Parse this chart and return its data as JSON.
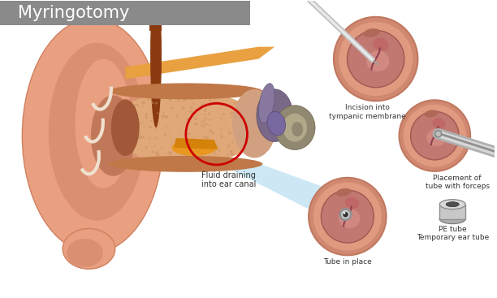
{
  "title": "Myringotomy",
  "title_bg": "#8a8a8a",
  "title_color": "#ffffff",
  "bg_color": "#ffffff",
  "labels": {
    "fluid": "Fluid draining\ninto ear canal",
    "incision": "Incision into\ntympanic membrane",
    "placement": "Placement of\ntube with forceps",
    "tube_in_place": "Tube in place",
    "pe_tube": "PE tube\nTemporary ear tube"
  },
  "circle_color": "#cc0000",
  "light_blue": "#b8dff0",
  "skin_light": "#e8a080",
  "skin_mid": "#d48060",
  "skin_dark": "#c06040",
  "bone_color": "#e8c9a0",
  "bone_dark": "#c8a870",
  "canal_color": "#d49070",
  "gray_title_box": "#8a8a8a",
  "ear_outer_color": "#e09070",
  "ear_inner_color": "#c87858",
  "ear_deep": "#a05838",
  "orange_wax": "#d4820a",
  "orange_wax2": "#e89820",
  "purple_membrane": "#7a6888",
  "purple_dark": "#5a4868",
  "circle_outer": "#d08870",
  "circle_inner_bg": "#c07868",
  "circle_membrane": "#c08080",
  "membrane_highlight": "#d09090",
  "membrane_dark": "#904060"
}
